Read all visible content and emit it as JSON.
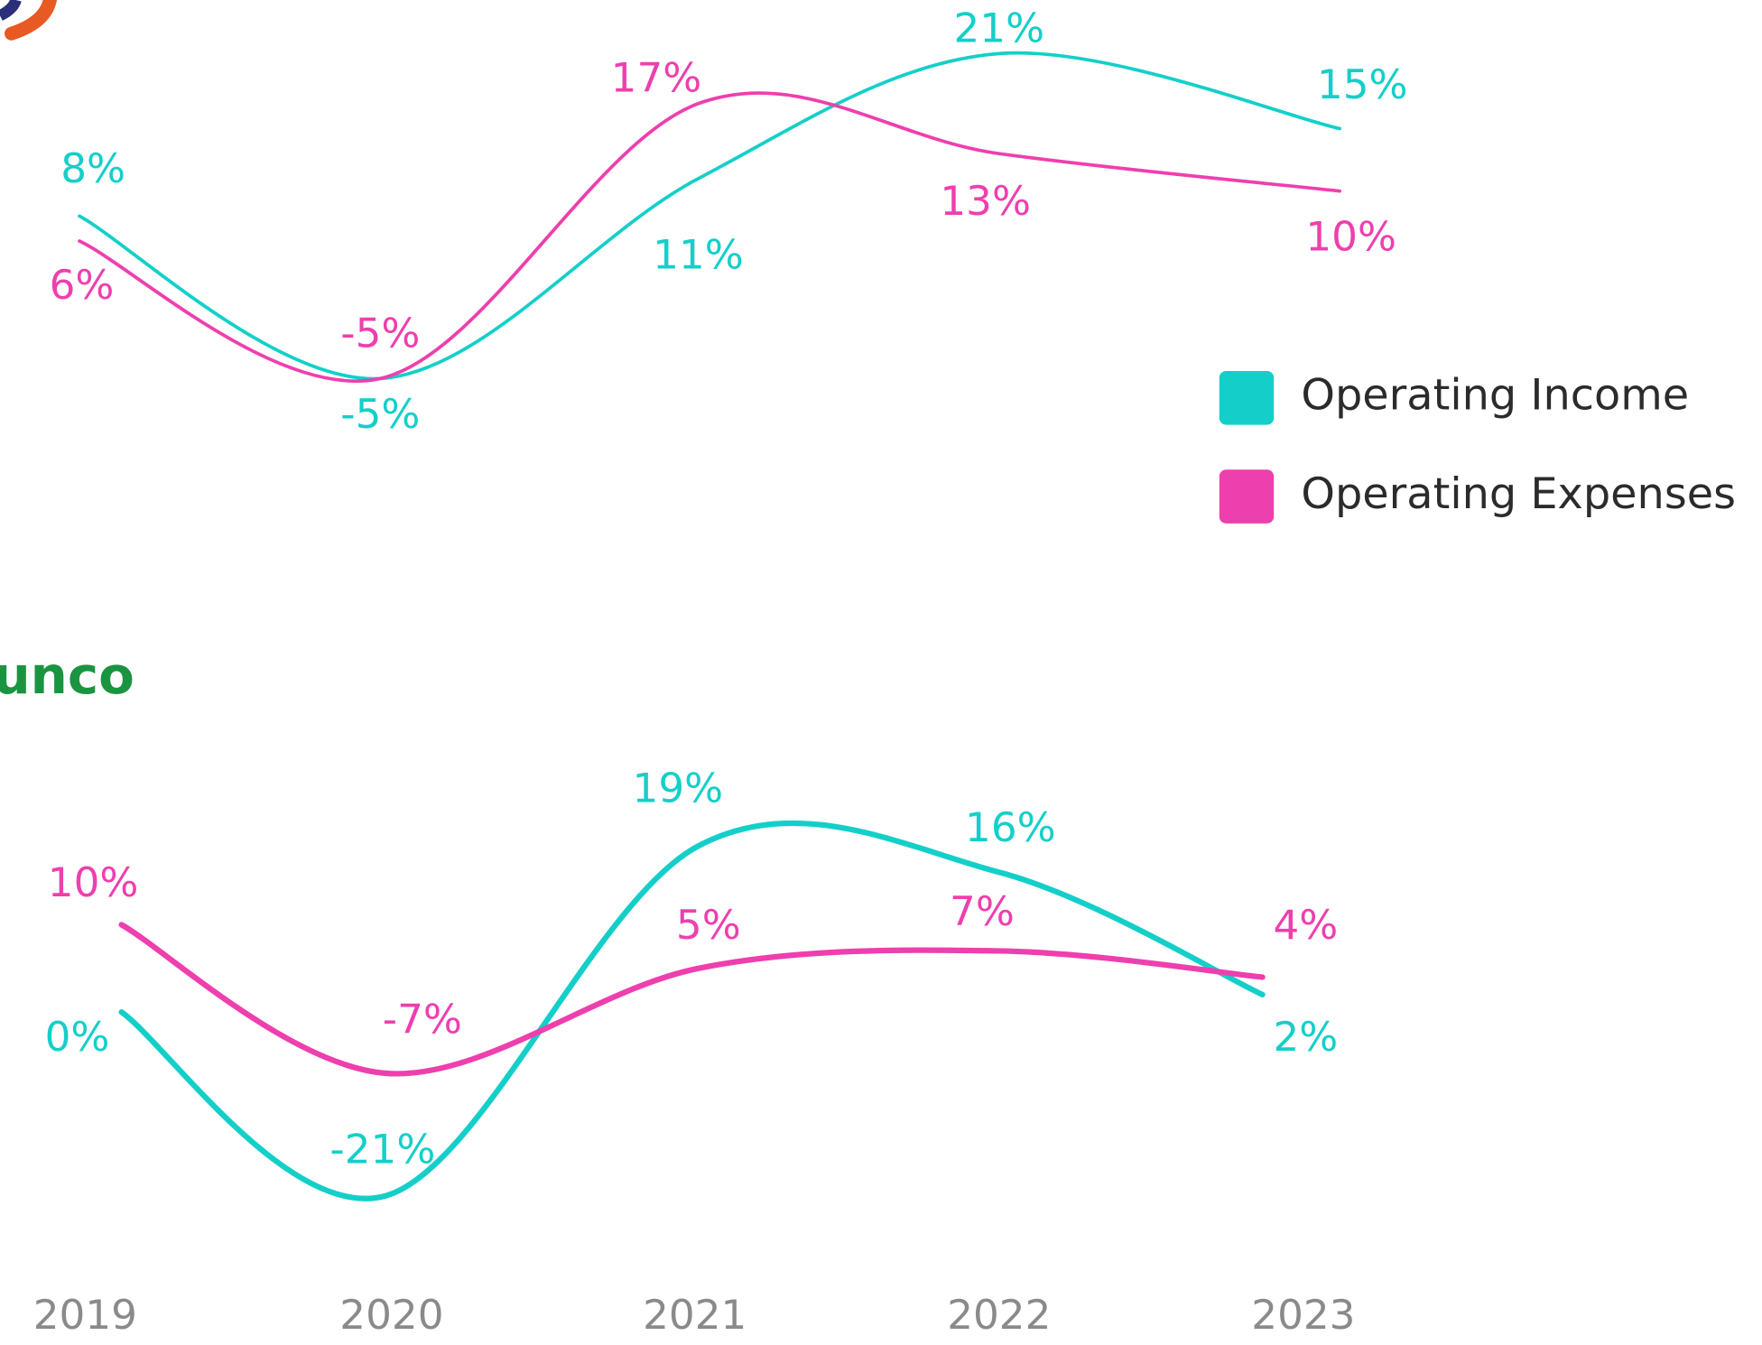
{
  "chart_data": [
    {
      "type": "line",
      "series": [
        {
          "name": "Operating Income",
          "color": "#14cfc9",
          "values": [
            8,
            -5,
            11,
            21,
            15
          ],
          "value_labels": [
            "8%",
            "-5%",
            "11%",
            "21%",
            "15%"
          ]
        },
        {
          "name": "Operating Expenses",
          "color": "#ee3fae",
          "values": [
            6,
            -5,
            17,
            13,
            10
          ],
          "value_labels": [
            "6%",
            "-5%",
            "17%",
            "13%",
            "10%"
          ]
        }
      ]
    },
    {
      "type": "line",
      "title": "unco",
      "categories": [
        "2019",
        "2020",
        "2021",
        "2022",
        "2023"
      ],
      "series": [
        {
          "name": "Operating Income",
          "color": "#14cfc9",
          "values": [
            0,
            -21,
            19,
            16,
            2
          ],
          "value_labels": [
            "0%",
            "-21%",
            "19%",
            "16%",
            "2%"
          ]
        },
        {
          "name": "Operating Expenses",
          "color": "#ee3fae",
          "values": [
            10,
            -7,
            5,
            7,
            4
          ],
          "value_labels": [
            "10%",
            "-7%",
            "5%",
            "7%",
            "4%"
          ]
        }
      ]
    }
  ]
}
